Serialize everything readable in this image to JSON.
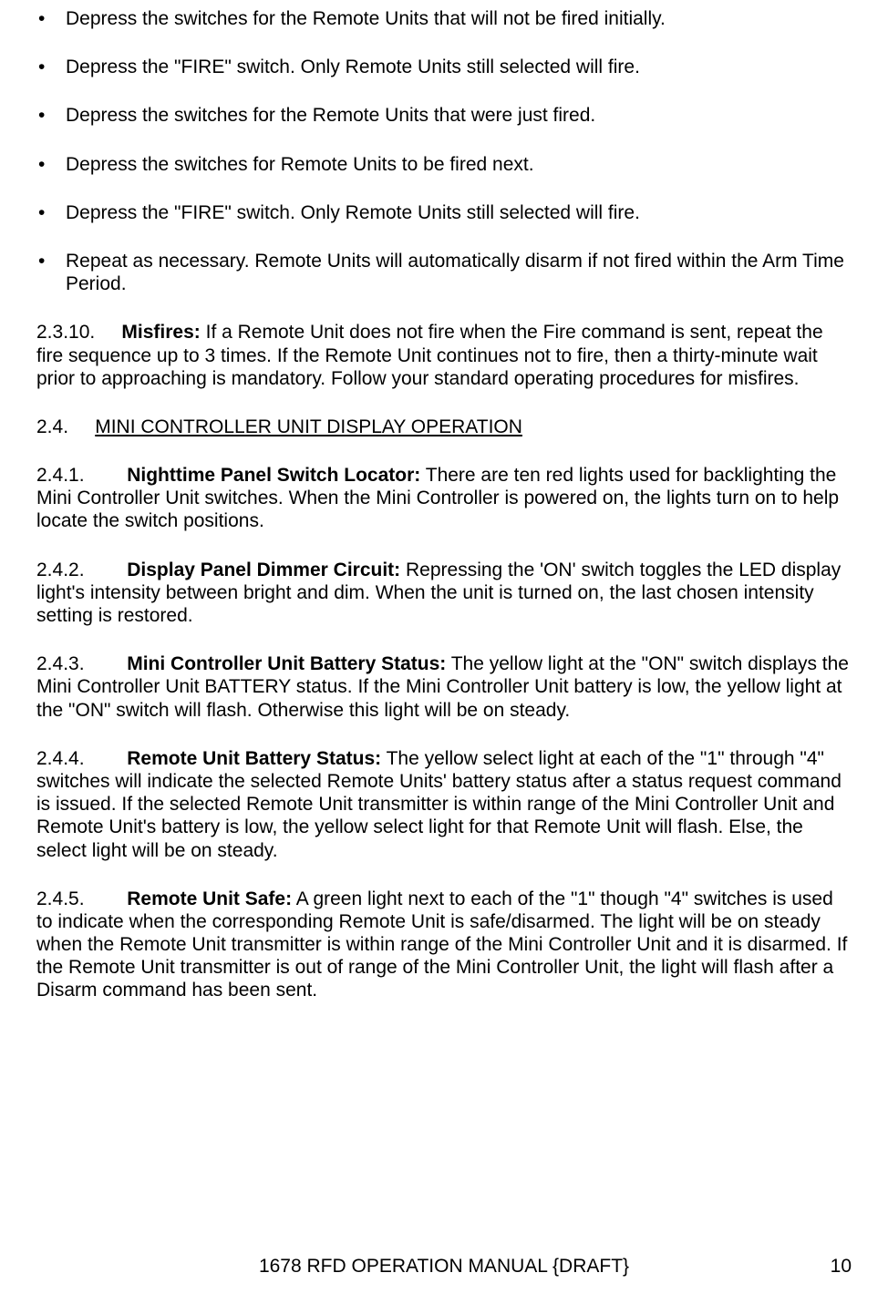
{
  "bullets": [
    "Depress the switches for the Remote Units that will not be fired initially.",
    "Depress the \"FIRE\" switch.  Only Remote Units still selected will fire.",
    "Depress the switches for the Remote Units that were just fired.",
    "Depress the switches for Remote Units to be fired next.",
    "Depress the \"FIRE\" switch.  Only Remote Units still selected will fire.",
    "Repeat as necessary.  Remote Units will automatically disarm if not fired within the Arm Time Period."
  ],
  "sections": {
    "misfires": {
      "num": "2.3.10.",
      "title": "Misfires:",
      "body": "  If a Remote Unit does not fire when the Fire command is sent, repeat the fire sequence up to 3 times.  If the Remote Unit continues not to fire, then a thirty-minute wait prior to approaching is mandatory.  Follow your standard operating procedures for misfires."
    },
    "heading24": {
      "num": "2.4.",
      "title": "MINI CONTROLLER UNIT DISPLAY OPERATION"
    },
    "nighttime": {
      "num": "2.4.1.",
      "title": "Nighttime Panel Switch Locator:",
      "body": "  There are ten red lights used for backlighting the Mini Controller Unit switches.  When the Mini Controller is powered on, the lights turn on to help locate the switch positions."
    },
    "dimmer": {
      "num": "2.4.2.",
      "title": "Display Panel Dimmer Circuit:",
      "body": "  Repressing the 'ON' switch toggles the LED display light's intensity between bright and dim. When the unit is turned on, the last chosen intensity setting is restored."
    },
    "minibatt": {
      "num": "2.4.3.",
      "title": "Mini Controller Unit Battery Status:",
      "body": "  The yellow light at the \"ON\" switch displays the Mini Controller Unit BATTERY status.  If the Mini Controller Unit battery is low, the yellow light at the \"ON\" switch will flash.  Otherwise this light will be on steady."
    },
    "remotebatt": {
      "num": "2.4.4.",
      "title": "Remote Unit Battery Status:",
      "body": "  The yellow select light at each of the \"1\" through \"4\" switches will indicate the selected Remote Units' battery status after a status request command is issued.  If the selected Remote Unit transmitter is within range of the Mini Controller Unit and Remote Unit's battery is low, the yellow select light for that Remote Unit will flash.  Else, the select light will be on steady."
    },
    "remotesafe": {
      "num": "2.4.5.",
      "title": "Remote Unit Safe:",
      "body": "  A green light next to each of the \"1\" though \"4\" switches is used to indicate when the corresponding Remote Unit is safe/disarmed.  The light will be on steady when the Remote Unit transmitter is within range of the Mini Controller Unit and it is disarmed.  If the Remote Unit transmitter is out of range of the Mini Controller Unit, the light will flash after a Disarm command has been sent."
    }
  },
  "footer": {
    "title": "1678 RFD OPERATION MANUAL {DRAFT}",
    "page": "10"
  }
}
